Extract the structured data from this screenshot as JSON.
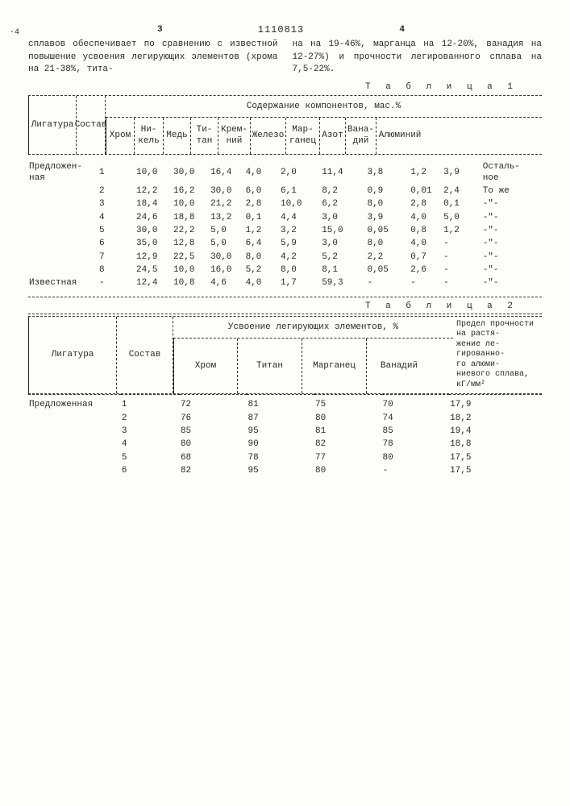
{
  "marks": {
    "left_dot": "·4",
    "col3": "3",
    "col4": "4",
    "patent_no": "1110813"
  },
  "intro": {
    "left": "сплавов обеспечивает по сравнению с известной повышение усвоения легирующих элементов (хрома на 21-38%, тита-",
    "right": "на на 19-46%, марганца на 12-20%, ванадия на 12-27%) и прочности легированного сплава на 7,5-22%."
  },
  "table1": {
    "label": "Т а б л и ц а  1",
    "header": {
      "ligatura": "Лигатура",
      "sostav": "Состав",
      "group": "Содержание компонентов, мас.%",
      "cols": [
        "Хром",
        "Ни-\nкель",
        "Медь",
        "Ти-\nтан",
        "Крем-\nний",
        "Железо",
        "Мар-\nганец",
        "Азот",
        "Вана-\nдий",
        "Алюминий"
      ]
    },
    "row_label_proposed": "Предложен-\nная",
    "row_label_known": "Известная",
    "ditto": "-\"-",
    "rest": "Осталь-\nное",
    "same": "То же",
    "rows": [
      {
        "n": "1",
        "v": [
          "10,0",
          "30,0",
          "16,4",
          "4,0",
          "2,0",
          "11,4",
          "3,8",
          "1,2",
          "3,9",
          "REST"
        ]
      },
      {
        "n": "2",
        "v": [
          "12,2",
          "16,2",
          "30,0",
          "6,0",
          "6,1",
          "8,2",
          "0,9",
          "0,01",
          "2,4",
          "SAME"
        ]
      },
      {
        "n": "3",
        "v": [
          "18,4",
          "10,0",
          "21,2",
          "2,8",
          "10,0",
          "6,2",
          "8,0",
          "2,8",
          "0,1",
          "DITTO"
        ]
      },
      {
        "n": "4",
        "v": [
          "24,6",
          "18,8",
          "13,2",
          "0,1",
          "4,4",
          "3,0",
          "3,9",
          "4,0",
          "5,0",
          "DITTO"
        ]
      },
      {
        "n": "5",
        "v": [
          "30,0",
          "22,2",
          "5,0",
          "1,2",
          "3,2",
          "15,0",
          "0,05",
          "0,8",
          "1,2",
          "DITTO"
        ]
      },
      {
        "n": "6",
        "v": [
          "35,0",
          "12,8",
          "5,0",
          "6,4",
          "5,9",
          "3,0",
          "8,0",
          "4,0",
          "-",
          "DITTO"
        ]
      },
      {
        "n": "7",
        "v": [
          "12,9",
          "22,5",
          "30,0",
          "8,0",
          "4,2",
          "5,2",
          "2,2",
          "0,7",
          "-",
          "DITTO"
        ]
      },
      {
        "n": "8",
        "v": [
          "24,5",
          "10,0",
          "16,0",
          "5,2",
          "8,0",
          "8,1",
          "0,05",
          "2,6",
          "-",
          "DITTO"
        ]
      }
    ],
    "known_row": {
      "n": "-",
      "v": [
        "12,4",
        "10,8",
        "4,6",
        "4,0",
        "1,7",
        "59,3",
        "-",
        "-",
        "-",
        "DITTO"
      ]
    }
  },
  "table2": {
    "label": "Т а б л и ц а  2",
    "header": {
      "ligatura": "Лигатура",
      "sostav": "Состав",
      "group": "Усвоение легирующих элементов, %",
      "cols": [
        "Хром",
        "Титан",
        "Марганец",
        "Ванадий"
      ],
      "last": "Предел прочности на растя-\nжение ле-\nгированно-\nго алюми-\nниевого сплава, кГ/мм²"
    },
    "row_label_proposed": "Предложенная",
    "rows": [
      {
        "n": "1",
        "v": [
          "72",
          "81",
          "75",
          "70",
          "17,9"
        ]
      },
      {
        "n": "2",
        "v": [
          "76",
          "87",
          "80",
          "74",
          "18,2"
        ]
      },
      {
        "n": "3",
        "v": [
          "85",
          "95",
          "81",
          "85",
          "19,4"
        ]
      },
      {
        "n": "4",
        "v": [
          "80",
          "90",
          "82",
          "78",
          "18,8"
        ]
      },
      {
        "n": "5",
        "v": [
          "68",
          "78",
          "77",
          "80",
          "17,5"
        ]
      },
      {
        "n": "6",
        "v": [
          "82",
          "95",
          "80",
          "-",
          "17,5"
        ]
      }
    ]
  },
  "col_widths": {
    "t1": {
      "ligatura": 60,
      "sostav": 36,
      "sub": [
        36,
        36,
        34,
        34,
        40,
        44,
        42,
        32,
        38,
        58
      ]
    },
    "t2": {
      "ligatura": 110,
      "sostav": 70,
      "sub": [
        80,
        80,
        80,
        80
      ],
      "last": 110
    }
  }
}
